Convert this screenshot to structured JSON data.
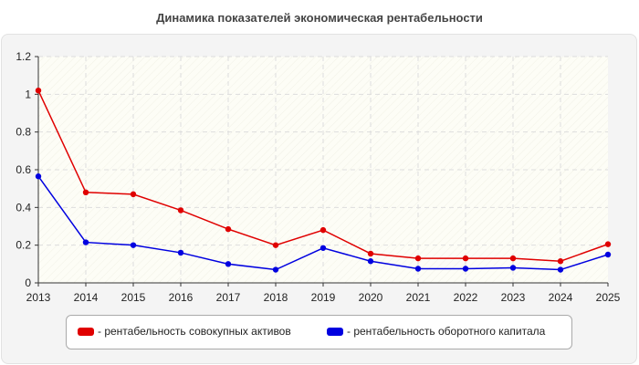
{
  "title": "Динамика показателей экономическая рентабельности",
  "chart_data": {
    "type": "line",
    "x": [
      2013,
      2014,
      2015,
      2016,
      2017,
      2018,
      2019,
      2020,
      2021,
      2022,
      2023,
      2024,
      2025
    ],
    "xlabel": "",
    "ylabel": "",
    "ylim": [
      0,
      1.2
    ],
    "yticks": [
      "0",
      "0.2",
      "0.4",
      "0.6",
      "0.8",
      "1",
      "1.2"
    ],
    "grid": true,
    "legend_position": "bottom",
    "series": [
      {
        "name": "- рентабельность совокупных активов",
        "color": "#e00000",
        "values": [
          1.02,
          0.48,
          0.47,
          0.385,
          0.285,
          0.2,
          0.28,
          0.155,
          0.13,
          0.13,
          0.13,
          0.115,
          0.205
        ]
      },
      {
        "name": "- рентабельность оборотного капитала",
        "color": "#0000e0",
        "values": [
          0.565,
          0.215,
          0.2,
          0.16,
          0.1,
          0.07,
          0.185,
          0.115,
          0.075,
          0.075,
          0.08,
          0.07,
          0.15
        ]
      }
    ]
  }
}
